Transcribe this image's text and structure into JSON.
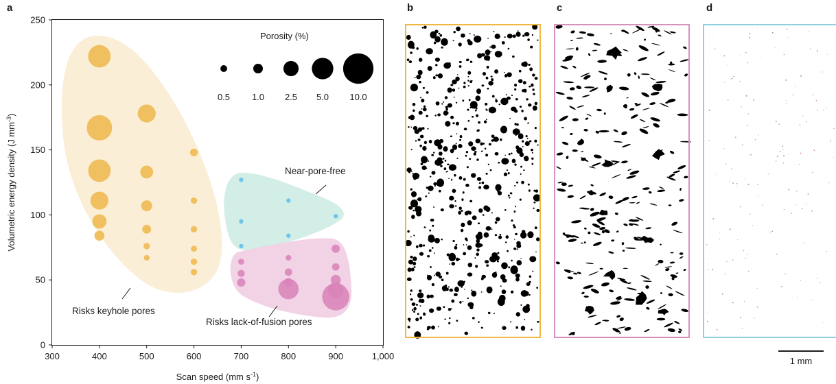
{
  "panels": {
    "a": "a",
    "b": "b",
    "c": "c",
    "d": "d"
  },
  "colors": {
    "keyhole": "#f0c060",
    "keyhole_region": "#fbeed7",
    "pore_free": "#6ec6e6",
    "pore_free_region": "#d3ede7",
    "lof": "#d884b8",
    "lof_region": "#f2d2e5",
    "panel_b_frame": "#f0b742",
    "panel_c_frame": "#d791bd",
    "panel_d_frame": "#8fd0de"
  },
  "chart_data": {
    "type": "scatter",
    "title": "",
    "xlabel": "Scan speed (mm s",
    "xlabel_sup": "-1",
    "xlabel_end": ")",
    "ylabel": "Volumetric energy density (J mm",
    "ylabel_sup": "-3",
    "ylabel_end": ")",
    "xlim": [
      300,
      1000
    ],
    "ylim": [
      0,
      250
    ],
    "xticks": [
      300,
      400,
      500,
      600,
      700,
      800,
      900,
      1000
    ],
    "xtick_labels": [
      "300",
      "400",
      "500",
      "600",
      "700",
      "800",
      "900",
      "1,000"
    ],
    "yticks": [
      0,
      50,
      100,
      150,
      200,
      250
    ],
    "ytick_labels": [
      "0",
      "50",
      "100",
      "150",
      "200",
      "250"
    ],
    "size_legend": {
      "title": "Porosity (%)",
      "values": [
        0.5,
        1.0,
        2.5,
        5.0,
        10.0
      ],
      "labels": [
        "0.5",
        "1.0",
        "2.5",
        "5.0",
        "10.0"
      ]
    },
    "annotations": {
      "keyhole": "Risks keyhole pores",
      "pore_free": "Near-pore-free",
      "lof": "Risks lack-of-fusion pores"
    },
    "series": [
      {
        "group": "keyhole",
        "points": [
          {
            "x": 400,
            "y": 222,
            "porosity": 5.5
          },
          {
            "x": 400,
            "y": 167,
            "porosity": 7.0
          },
          {
            "x": 400,
            "y": 134,
            "porosity": 5.5
          },
          {
            "x": 400,
            "y": 111,
            "porosity": 3.5
          },
          {
            "x": 400,
            "y": 95,
            "porosity": 2.2
          },
          {
            "x": 400,
            "y": 84,
            "porosity": 1.1
          },
          {
            "x": 500,
            "y": 178,
            "porosity": 3.5
          },
          {
            "x": 500,
            "y": 133,
            "porosity": 1.8
          },
          {
            "x": 500,
            "y": 107,
            "porosity": 1.3
          },
          {
            "x": 500,
            "y": 89,
            "porosity": 0.85
          },
          {
            "x": 500,
            "y": 76,
            "porosity": 0.45
          },
          {
            "x": 500,
            "y": 67,
            "porosity": 0.35
          },
          {
            "x": 600,
            "y": 148,
            "porosity": 0.65
          },
          {
            "x": 600,
            "y": 111,
            "porosity": 0.45
          },
          {
            "x": 600,
            "y": 89,
            "porosity": 0.45
          },
          {
            "x": 600,
            "y": 74,
            "porosity": 0.4
          },
          {
            "x": 600,
            "y": 64,
            "porosity": 0.45
          },
          {
            "x": 600,
            "y": 56,
            "porosity": 0.45
          }
        ]
      },
      {
        "group": "pore_free",
        "points": [
          {
            "x": 700,
            "y": 127,
            "porosity": 0.2
          },
          {
            "x": 700,
            "y": 95,
            "porosity": 0.2
          },
          {
            "x": 700,
            "y": 76,
            "porosity": 0.2
          },
          {
            "x": 800,
            "y": 111,
            "porosity": 0.2
          },
          {
            "x": 800,
            "y": 84,
            "porosity": 0.2
          },
          {
            "x": 900,
            "y": 99,
            "porosity": 0.2
          }
        ]
      },
      {
        "group": "lof",
        "points": [
          {
            "x": 700,
            "y": 64,
            "porosity": 0.4
          },
          {
            "x": 700,
            "y": 55,
            "porosity": 0.55
          },
          {
            "x": 700,
            "y": 48,
            "porosity": 0.75
          },
          {
            "x": 800,
            "y": 67,
            "porosity": 0.35
          },
          {
            "x": 800,
            "y": 56,
            "porosity": 0.6
          },
          {
            "x": 800,
            "y": 48,
            "porosity": 0.85
          },
          {
            "x": 800,
            "y": 43,
            "porosity": 4.5
          },
          {
            "x": 900,
            "y": 74,
            "porosity": 0.75
          },
          {
            "x": 900,
            "y": 60,
            "porosity": 0.6
          },
          {
            "x": 900,
            "y": 50,
            "porosity": 1.1
          },
          {
            "x": 900,
            "y": 42,
            "porosity": 2.8
          },
          {
            "x": 900,
            "y": 37,
            "porosity": 8.0
          }
        ]
      }
    ]
  },
  "scale_bar": {
    "label": "1 mm"
  }
}
